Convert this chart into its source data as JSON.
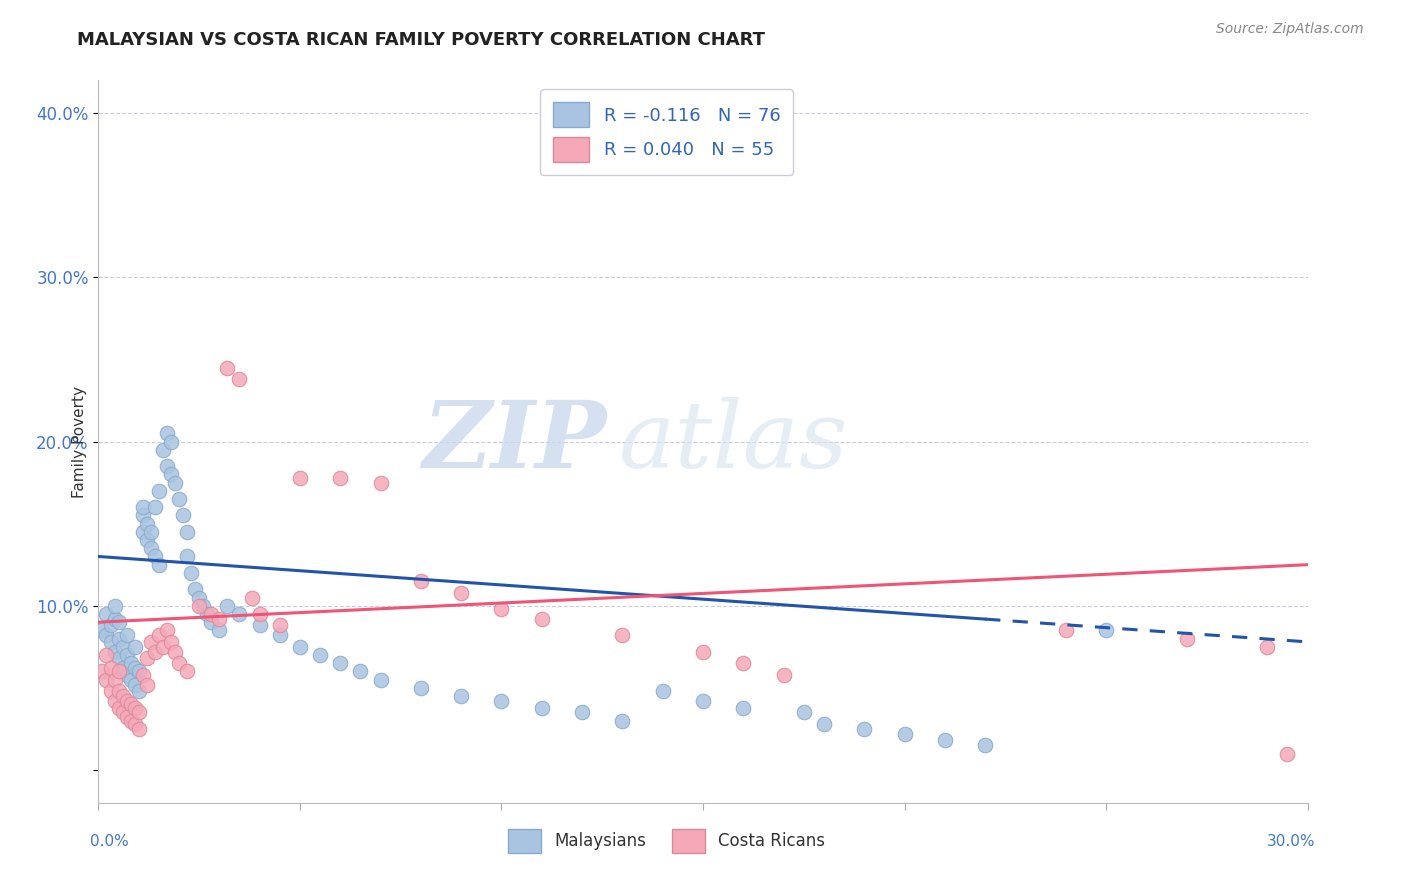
{
  "title": "MALAYSIAN VS COSTA RICAN FAMILY POVERTY CORRELATION CHART",
  "source": "Source: ZipAtlas.com",
  "ylabel": "Family Poverty",
  "xlim": [
    0.0,
    0.3
  ],
  "ylim": [
    -0.02,
    0.42
  ],
  "malaysian_color": "#A8C4E0",
  "costa_rican_color": "#F4A8B8",
  "regression_blue": "#2255AA",
  "regression_pink": "#EE5577",
  "legend_R_blue": "R = -0.116",
  "legend_N_blue": "N = 76",
  "legend_R_pink": "R = 0.040",
  "legend_N_pink": "N = 55",
  "watermark_zip": "ZIP",
  "watermark_atlas": "atlas",
  "title_fontsize": 13,
  "source_fontsize": 10,
  "ytick_color": "#4477CC",
  "xtick_color": "#4477CC",
  "mal_x": [
    0.001,
    0.002,
    0.002,
    0.003,
    0.003,
    0.004,
    0.004,
    0.004,
    0.005,
    0.005,
    0.005,
    0.006,
    0.006,
    0.007,
    0.007,
    0.007,
    0.008,
    0.008,
    0.009,
    0.009,
    0.009,
    0.01,
    0.01,
    0.011,
    0.011,
    0.011,
    0.012,
    0.012,
    0.013,
    0.013,
    0.014,
    0.014,
    0.015,
    0.015,
    0.016,
    0.017,
    0.017,
    0.018,
    0.018,
    0.019,
    0.02,
    0.021,
    0.022,
    0.022,
    0.023,
    0.024,
    0.025,
    0.026,
    0.027,
    0.028,
    0.03,
    0.032,
    0.035,
    0.04,
    0.045,
    0.05,
    0.055,
    0.06,
    0.065,
    0.07,
    0.08,
    0.09,
    0.1,
    0.11,
    0.12,
    0.13,
    0.14,
    0.15,
    0.16,
    0.175,
    0.18,
    0.19,
    0.2,
    0.21,
    0.22,
    0.25
  ],
  "mal_y": [
    0.085,
    0.082,
    0.095,
    0.078,
    0.088,
    0.072,
    0.092,
    0.1,
    0.068,
    0.08,
    0.09,
    0.062,
    0.075,
    0.058,
    0.07,
    0.082,
    0.055,
    0.065,
    0.052,
    0.062,
    0.075,
    0.048,
    0.06,
    0.155,
    0.145,
    0.16,
    0.14,
    0.15,
    0.135,
    0.145,
    0.13,
    0.16,
    0.125,
    0.17,
    0.195,
    0.185,
    0.205,
    0.18,
    0.2,
    0.175,
    0.165,
    0.155,
    0.13,
    0.145,
    0.12,
    0.11,
    0.105,
    0.1,
    0.095,
    0.09,
    0.085,
    0.1,
    0.095,
    0.088,
    0.082,
    0.075,
    0.07,
    0.065,
    0.06,
    0.055,
    0.05,
    0.045,
    0.042,
    0.038,
    0.035,
    0.03,
    0.048,
    0.042,
    0.038,
    0.035,
    0.028,
    0.025,
    0.022,
    0.018,
    0.015,
    0.085
  ],
  "cr_x": [
    0.001,
    0.002,
    0.002,
    0.003,
    0.003,
    0.004,
    0.004,
    0.005,
    0.005,
    0.005,
    0.006,
    0.006,
    0.007,
    0.007,
    0.008,
    0.008,
    0.009,
    0.009,
    0.01,
    0.01,
    0.011,
    0.012,
    0.012,
    0.013,
    0.014,
    0.015,
    0.016,
    0.017,
    0.018,
    0.019,
    0.02,
    0.022,
    0.025,
    0.028,
    0.03,
    0.032,
    0.035,
    0.038,
    0.04,
    0.045,
    0.05,
    0.06,
    0.07,
    0.08,
    0.09,
    0.1,
    0.11,
    0.13,
    0.15,
    0.16,
    0.17,
    0.24,
    0.27,
    0.29,
    0.295
  ],
  "cr_y": [
    0.06,
    0.055,
    0.07,
    0.048,
    0.062,
    0.042,
    0.055,
    0.038,
    0.048,
    0.06,
    0.035,
    0.045,
    0.032,
    0.042,
    0.03,
    0.04,
    0.028,
    0.038,
    0.025,
    0.035,
    0.058,
    0.052,
    0.068,
    0.078,
    0.072,
    0.082,
    0.075,
    0.085,
    0.078,
    0.072,
    0.065,
    0.06,
    0.1,
    0.095,
    0.092,
    0.245,
    0.238,
    0.105,
    0.095,
    0.088,
    0.178,
    0.178,
    0.175,
    0.115,
    0.108,
    0.098,
    0.092,
    0.082,
    0.072,
    0.065,
    0.058,
    0.085,
    0.08,
    0.075,
    0.01
  ]
}
